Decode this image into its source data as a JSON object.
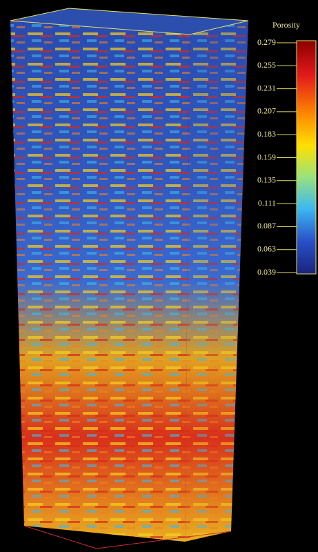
{
  "colorbar": {
    "title": "Porosity",
    "lim": [
      0.039,
      0.279
    ],
    "ticks": [
      0.279,
      0.255,
      0.231,
      0.207,
      0.183,
      0.159,
      0.135,
      0.111,
      0.087,
      0.063,
      0.039
    ]
  }
}
